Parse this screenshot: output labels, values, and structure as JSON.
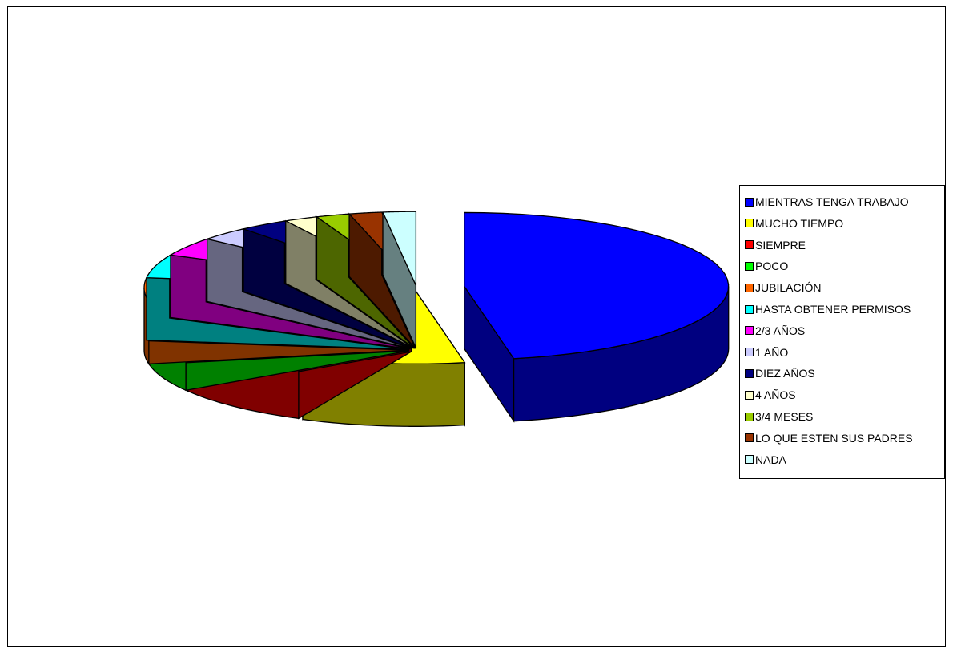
{
  "chart_data": {
    "type": "pie",
    "title": "",
    "legend": "right",
    "exploded": true,
    "three_d": true,
    "categories": [
      "MIENTRAS TENGA TRABAJO",
      "MUCHO TIEMPO",
      "SIEMPRE",
      "POCO",
      "JUBILACIÓN",
      "HASTA OBTENER PERMISOS",
      "2/3 AÑOS",
      "1 AÑO",
      "DIEZ AÑOS",
      "4 AÑOS",
      "3/4 MESES",
      "LO QUE ESTÉN SUS PADRES",
      "NADA"
    ],
    "values": [
      47,
      10,
      9,
      6,
      5,
      5,
      4,
      3,
      3,
      2,
      2,
      2,
      2
    ],
    "colors": [
      "#0000ff",
      "#ffff00",
      "#ff0000",
      "#00ff00",
      "#ff6600",
      "#00ffff",
      "#ff00ff",
      "#ccccff",
      "#000080",
      "#ffffcc",
      "#99cc00",
      "#993300",
      "#ccffff"
    ],
    "side_colors": [
      "#000080",
      "#808000",
      "#800000",
      "#008000",
      "#803300",
      "#008080",
      "#800080",
      "#666680",
      "#000040",
      "#808066",
      "#4d6600",
      "#4d1a00",
      "#668080"
    ]
  }
}
